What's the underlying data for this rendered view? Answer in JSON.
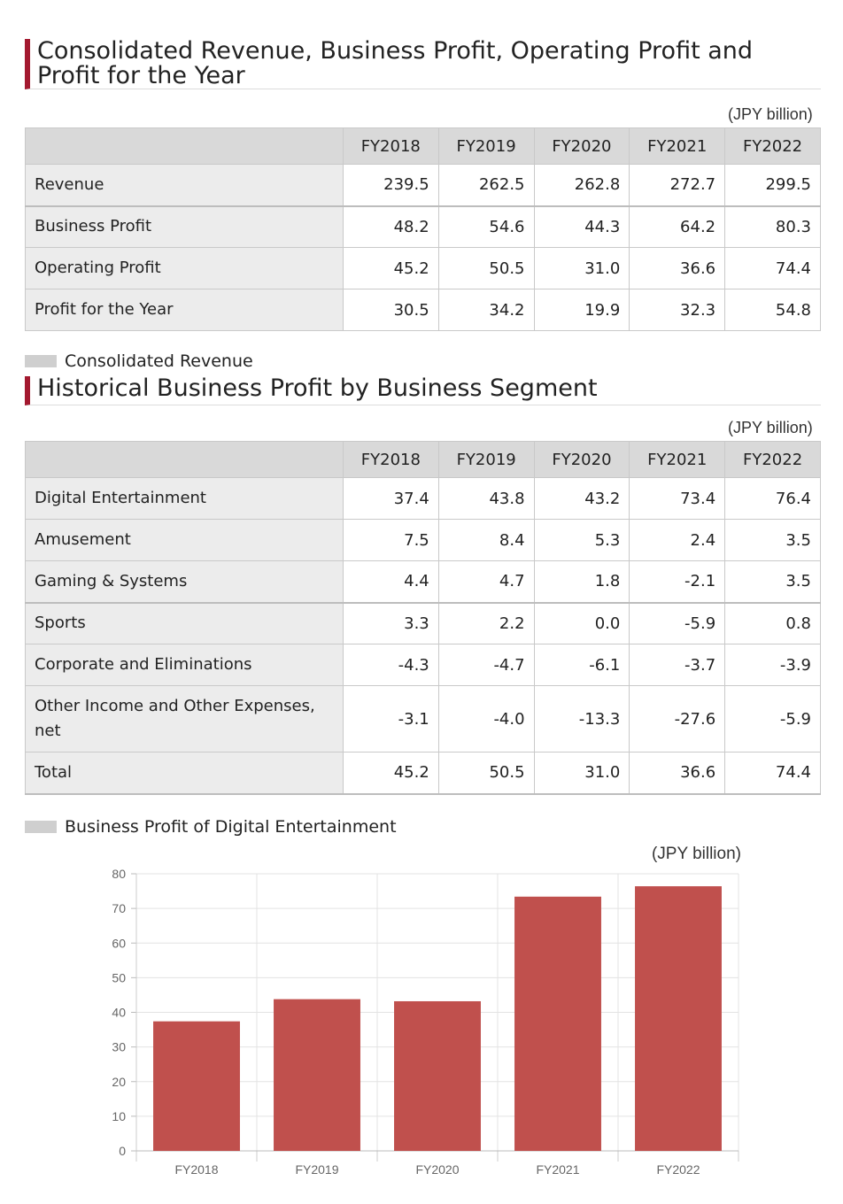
{
  "section1": {
    "title_line1": "Consolidated Revenue, Business Profit, Operating Profit and",
    "title_line2": "Profit for the Year",
    "unit": "(JPY billion)",
    "years": [
      "FY2018",
      "FY2019",
      "FY2020",
      "FY2021",
      "FY2022"
    ],
    "rows": [
      {
        "label": "Revenue",
        "values": [
          "239.5",
          "262.5",
          "262.8",
          "272.7",
          "299.5"
        ]
      },
      {
        "label": "Business Profit",
        "values": [
          "48.2",
          "54.6",
          "44.3",
          "64.2",
          "80.3"
        ]
      },
      {
        "label": "Operating Profit",
        "values": [
          "45.2",
          "50.5",
          "31.0",
          "36.6",
          "74.4"
        ]
      },
      {
        "label": "Profit for the Year",
        "values": [
          "30.5",
          "34.2",
          "19.9",
          "32.3",
          "54.8"
        ]
      }
    ]
  },
  "legend1": {
    "text": "Consolidated Revenue"
  },
  "section2": {
    "title": "Historical Business Profit by Business Segment",
    "unit": "(JPY billion)",
    "years": [
      "FY2018",
      "FY2019",
      "FY2020",
      "FY2021",
      "FY2022"
    ],
    "rows": [
      {
        "label": "Digital Entertainment",
        "values": [
          "37.4",
          "43.8",
          "43.2",
          "73.4",
          "76.4"
        ]
      },
      {
        "label": "Amusement",
        "values": [
          "7.5",
          "8.4",
          "5.3",
          "2.4",
          "3.5"
        ]
      },
      {
        "label": "Gaming & Systems",
        "values": [
          "4.4",
          "4.7",
          "1.8",
          "-2.1",
          "3.5"
        ]
      },
      {
        "label": "Sports",
        "values": [
          "3.3",
          "2.2",
          "0.0",
          "-5.9",
          "0.8"
        ]
      },
      {
        "label": "Corporate and Eliminations",
        "values": [
          "-4.3",
          "-4.7",
          "-6.1",
          "-3.7",
          "-3.9"
        ]
      },
      {
        "label": "Other Income and Other Expenses, net",
        "values": [
          "-3.1",
          "-4.0",
          "-13.3",
          "-27.6",
          "-5.9"
        ]
      },
      {
        "label": "Total",
        "values": [
          "45.2",
          "50.5",
          "31.0",
          "36.6",
          "74.4"
        ]
      }
    ]
  },
  "legend2": {
    "text": "Business Profit of Digital Entertainment"
  },
  "chart_data": {
    "type": "bar",
    "title": "",
    "unit": "(JPY billion)",
    "categories": [
      "FY2018",
      "FY2019",
      "FY2020",
      "FY2021",
      "FY2022"
    ],
    "values": [
      37.4,
      43.8,
      43.2,
      73.4,
      76.4
    ],
    "ylim": [
      0,
      80
    ],
    "yticks": [
      0,
      10,
      20,
      30,
      40,
      50,
      60,
      70,
      80
    ],
    "grid": true,
    "bar_color": "#c0504d"
  },
  "colors": {
    "accent": "#a3192f",
    "header_bg": "#d9d9d9",
    "label_bg": "#ececec"
  }
}
